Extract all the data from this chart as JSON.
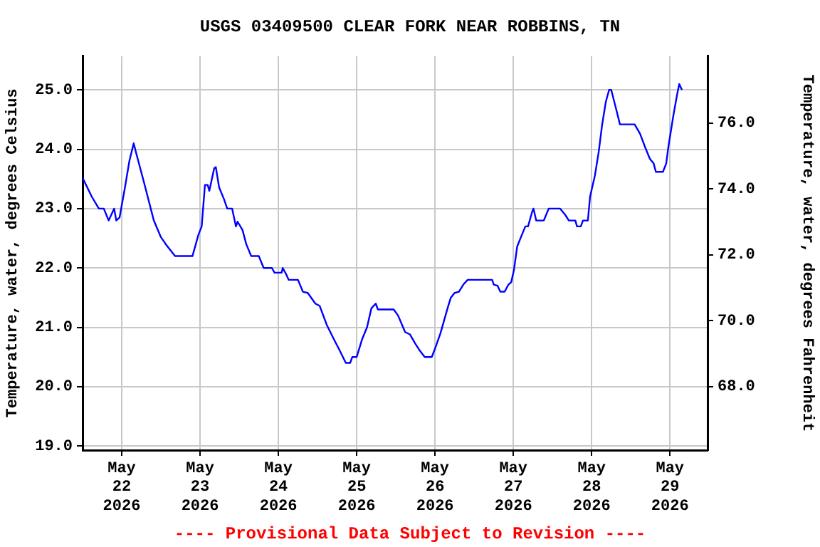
{
  "chart_data": {
    "type": "line",
    "title": "USGS 03409500 CLEAR FORK NEAR ROBBINS, TN",
    "ylabel": "Temperature, water, degrees Celsius",
    "y2label": "Temperature, water, degrees Fahrenheit",
    "x": [
      "2026-05-21T12:00",
      "2026-05-21T14:50",
      "2026-05-21T17:00",
      "2026-05-21T18:30",
      "2026-05-21T20:00",
      "2026-05-21T21:40",
      "2026-05-21T22:20",
      "2026-05-21T23:20",
      "2026-05-22T01:00",
      "2026-05-22T02:20",
      "2026-05-22T03:40",
      "2026-05-22T04:30",
      "2026-05-22T06:50",
      "2026-05-22T09:50",
      "2026-05-22T12:00",
      "2026-05-22T13:30",
      "2026-05-22T16:20",
      "2026-05-22T21:40",
      "2026-05-22T23:30",
      "2026-05-23T00:30",
      "2026-05-23T01:30",
      "2026-05-23T02:20",
      "2026-05-23T02:50",
      "2026-05-23T04:20",
      "2026-05-23T04:50",
      "2026-05-23T05:50",
      "2026-05-23T07:20",
      "2026-05-23T08:20",
      "2026-05-23T09:50",
      "2026-05-23T11:00",
      "2026-05-23T11:30",
      "2026-05-23T13:00",
      "2026-05-23T14:10",
      "2026-05-23T15:40",
      "2026-05-23T18:00",
      "2026-05-23T19:30",
      "2026-05-23T22:00",
      "2026-05-23T22:50",
      "2026-05-24T01:00",
      "2026-05-24T01:20",
      "2026-05-24T02:20",
      "2026-05-24T03:10",
      "2026-05-24T06:00",
      "2026-05-24T07:30",
      "2026-05-24T09:00",
      "2026-05-24T11:20",
      "2026-05-24T12:40",
      "2026-05-24T14:50",
      "2026-05-24T17:00",
      "2026-05-24T18:30",
      "2026-05-24T20:40",
      "2026-05-24T22:00",
      "2026-05-24T22:40",
      "2026-05-25T00:00",
      "2026-05-25T01:40",
      "2026-05-25T03:10",
      "2026-05-25T04:30",
      "2026-05-25T05:50",
      "2026-05-25T06:30",
      "2026-05-25T11:20",
      "2026-05-25T12:40",
      "2026-05-25T14:50",
      "2026-05-25T16:20",
      "2026-05-25T18:00",
      "2026-05-25T19:10",
      "2026-05-25T20:50",
      "2026-05-25T23:00",
      "2026-05-26T00:00",
      "2026-05-26T01:40",
      "2026-05-26T03:50",
      "2026-05-26T04:50",
      "2026-05-26T06:00",
      "2026-05-26T07:20",
      "2026-05-26T08:40",
      "2026-05-26T10:00",
      "2026-05-26T17:30",
      "2026-05-26T18:00",
      "2026-05-26T19:10",
      "2026-05-26T20:00",
      "2026-05-26T21:20",
      "2026-05-26T22:30",
      "2026-05-26T23:20",
      "2026-05-27T00:10",
      "2026-05-27T01:10",
      "2026-05-27T02:20",
      "2026-05-27T03:40",
      "2026-05-27T04:30",
      "2026-05-27T05:50",
      "2026-05-27T06:10",
      "2026-05-27T07:00",
      "2026-05-27T09:20",
      "2026-05-27T10:50",
      "2026-05-27T14:20",
      "2026-05-27T15:50",
      "2026-05-27T17:00",
      "2026-05-27T19:00",
      "2026-05-27T19:30",
      "2026-05-27T20:40",
      "2026-05-27T21:20",
      "2026-05-27T22:50",
      "2026-05-27T23:30",
      "2026-05-28T01:00",
      "2026-05-28T02:10",
      "2026-05-28T03:10",
      "2026-05-28T04:20",
      "2026-05-28T05:20",
      "2026-05-28T06:00",
      "2026-05-28T07:40",
      "2026-05-28T08:40",
      "2026-05-28T13:10",
      "2026-05-28T14:50",
      "2026-05-28T16:20",
      "2026-05-28T17:50",
      "2026-05-28T19:00",
      "2026-05-28T19:40",
      "2026-05-28T21:50",
      "2026-05-28T22:50",
      "2026-05-28T23:30",
      "2026-05-29T01:00",
      "2026-05-29T02:10",
      "2026-05-29T02:50",
      "2026-05-29T03:40"
    ],
    "series": [
      {
        "color": "#0000ff",
        "values": [
          23.52,
          23.2,
          23.0,
          23.0,
          22.8,
          23.0,
          22.8,
          22.85,
          23.36,
          23.8,
          24.1,
          23.92,
          23.44,
          22.8,
          22.52,
          22.4,
          22.2,
          22.2,
          22.56,
          22.7,
          23.4,
          23.4,
          23.3,
          23.68,
          23.7,
          23.36,
          23.16,
          23.0,
          23.0,
          22.7,
          22.78,
          22.64,
          22.4,
          22.2,
          22.2,
          22.0,
          22.0,
          21.92,
          21.92,
          22.0,
          21.9,
          21.8,
          21.8,
          21.6,
          21.58,
          21.4,
          21.36,
          21.04,
          20.8,
          20.64,
          20.4,
          20.4,
          20.5,
          20.5,
          20.8,
          21.0,
          21.32,
          21.4,
          21.3,
          21.3,
          21.2,
          20.92,
          20.88,
          20.72,
          20.62,
          20.5,
          20.5,
          20.64,
          20.9,
          21.32,
          21.5,
          21.58,
          21.6,
          21.72,
          21.8,
          21.8,
          21.72,
          21.7,
          21.6,
          21.6,
          21.72,
          21.76,
          21.96,
          22.36,
          22.52,
          22.7,
          22.7,
          22.96,
          23.0,
          22.8,
          22.8,
          23.0,
          23.0,
          22.9,
          22.8,
          22.8,
          22.7,
          22.7,
          22.8,
          22.8,
          23.2,
          23.56,
          23.96,
          24.4,
          24.8,
          25.0,
          25.0,
          24.64,
          24.42,
          24.42,
          24.26,
          24.04,
          23.84,
          23.76,
          23.62,
          23.62,
          23.76,
          24.04,
          24.56,
          24.92,
          25.1,
          25.0
        ]
      }
    ],
    "xlim": [
      "2026-05-21T12:00",
      "2026-05-29T11:30"
    ],
    "xticks": [
      {
        "value": "2026-05-22T00:00",
        "label": "May\n22\n2026"
      },
      {
        "value": "2026-05-23T00:00",
        "label": "May\n23\n2026"
      },
      {
        "value": "2026-05-24T00:00",
        "label": "May\n24\n2026"
      },
      {
        "value": "2026-05-25T00:00",
        "label": "May\n25\n2026"
      },
      {
        "value": "2026-05-26T00:00",
        "label": "May\n26\n2026"
      },
      {
        "value": "2026-05-27T00:00",
        "label": "May\n27\n2026"
      },
      {
        "value": "2026-05-28T00:00",
        "label": "May\n28\n2026"
      },
      {
        "value": "2026-05-29T00:00",
        "label": "May\n29\n2026"
      }
    ],
    "ylim": [
      18.93,
      25.57
    ],
    "yticks": [
      {
        "value": 19,
        "label": "19.0"
      },
      {
        "value": 20,
        "label": "20.0"
      },
      {
        "value": 21,
        "label": "21.0"
      },
      {
        "value": 22,
        "label": "22.0"
      },
      {
        "value": 23,
        "label": "23.0"
      },
      {
        "value": 24,
        "label": "24.0"
      },
      {
        "value": 25,
        "label": "25.0"
      }
    ],
    "y2lim": [
      66.07,
      78.03
    ],
    "y2ticks": [
      {
        "value": 68,
        "label": "68.0"
      },
      {
        "value": 70,
        "label": "70.0"
      },
      {
        "value": 72,
        "label": "72.0"
      },
      {
        "value": 74,
        "label": "74.0"
      },
      {
        "value": 76,
        "label": "76.0"
      }
    ],
    "grid": true,
    "annotations": [
      "---- Provisional Data Subject to Revision ----"
    ]
  }
}
